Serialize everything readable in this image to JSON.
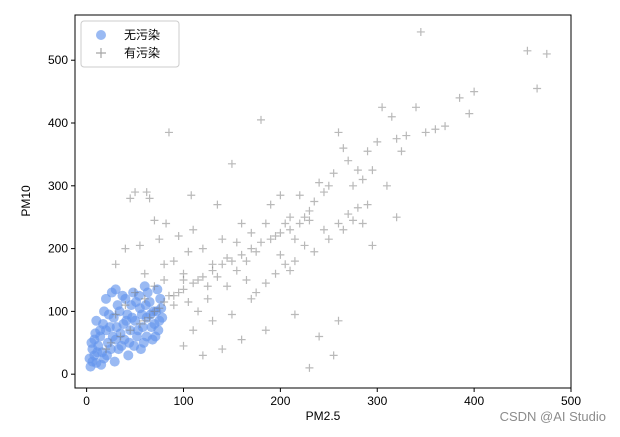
{
  "chart_data": {
    "type": "scatter",
    "title": "",
    "xlabel": "PM2.5",
    "ylabel": "PM10",
    "xlim": [
      -12,
      500
    ],
    "ylim": [
      -22,
      572
    ],
    "xticks": [
      0,
      100,
      200,
      300,
      400,
      500
    ],
    "yticks": [
      0,
      100,
      200,
      300,
      400,
      500
    ],
    "grid": false,
    "legend_position": "top-left",
    "series": [
      {
        "name": "无污染",
        "marker": "circle",
        "color": "#6495ED",
        "opacity": 0.65,
        "points": [
          [
            4,
            12
          ],
          [
            6,
            20
          ],
          [
            8,
            30
          ],
          [
            10,
            18
          ],
          [
            12,
            45
          ],
          [
            14,
            60
          ],
          [
            16,
            35
          ],
          [
            18,
            25
          ],
          [
            20,
            70
          ],
          [
            22,
            50
          ],
          [
            25,
            40
          ],
          [
            28,
            90
          ],
          [
            30,
            55
          ],
          [
            32,
            110
          ],
          [
            35,
            65
          ],
          [
            38,
            80
          ],
          [
            40,
            120
          ],
          [
            42,
            95
          ],
          [
            45,
            70
          ],
          [
            48,
            130
          ],
          [
            50,
            85
          ],
          [
            52,
            60
          ],
          [
            55,
            105
          ],
          [
            58,
            75
          ],
          [
            60,
            140
          ],
          [
            62,
            90
          ],
          [
            65,
            115
          ],
          [
            68,
            55
          ],
          [
            70,
            80
          ],
          [
            72,
            100
          ],
          [
            10,
            85
          ],
          [
            14,
            70
          ],
          [
            8,
            55
          ],
          [
            6,
            40
          ],
          [
            18,
            100
          ],
          [
            20,
            120
          ],
          [
            24,
            75
          ],
          [
            26,
            130
          ],
          [
            30,
            135
          ],
          [
            34,
            100
          ],
          [
            36,
            45
          ],
          [
            44,
            50
          ],
          [
            46,
            110
          ],
          [
            54,
            125
          ],
          [
            56,
            40
          ],
          [
            62,
            60
          ],
          [
            66,
            95
          ],
          [
            74,
            70
          ],
          [
            76,
            120
          ],
          [
            78,
            90
          ],
          [
            3,
            25
          ],
          [
            5,
            50
          ],
          [
            9,
            65
          ],
          [
            11,
            35
          ],
          [
            15,
            15
          ],
          [
            17,
            80
          ],
          [
            21,
            30
          ],
          [
            23,
            95
          ],
          [
            27,
            60
          ],
          [
            29,
            20
          ],
          [
            31,
            75
          ],
          [
            33,
            40
          ],
          [
            37,
            125
          ],
          [
            39,
            55
          ],
          [
            41,
            85
          ],
          [
            43,
            30
          ],
          [
            47,
            90
          ],
          [
            49,
            45
          ],
          [
            51,
            115
          ],
          [
            53,
            70
          ],
          [
            57,
            95
          ],
          [
            59,
            50
          ],
          [
            61,
            110
          ],
          [
            63,
            130
          ],
          [
            67,
            75
          ],
          [
            69,
            100
          ],
          [
            71,
            60
          ],
          [
            73,
            135
          ],
          [
            75,
            85
          ],
          [
            77,
            105
          ]
        ]
      },
      {
        "name": "有污染",
        "marker": "plus",
        "color": "#808080",
        "opacity": 0.55,
        "points": [
          [
            30,
            175
          ],
          [
            40,
            200
          ],
          [
            45,
            280
          ],
          [
            50,
            290
          ],
          [
            55,
            205
          ],
          [
            60,
            160
          ],
          [
            62,
            290
          ],
          [
            65,
            280
          ],
          [
            70,
            245
          ],
          [
            75,
            215
          ],
          [
            80,
            175
          ],
          [
            82,
            240
          ],
          [
            85,
            385
          ],
          [
            90,
            180
          ],
          [
            95,
            220
          ],
          [
            100,
            160
          ],
          [
            105,
            195
          ],
          [
            108,
            285
          ],
          [
            110,
            230
          ],
          [
            115,
            150
          ],
          [
            120,
            200
          ],
          [
            125,
            140
          ],
          [
            130,
            175
          ],
          [
            135,
            270
          ],
          [
            140,
            215
          ],
          [
            145,
            185
          ],
          [
            150,
            335
          ],
          [
            155,
            210
          ],
          [
            160,
            240
          ],
          [
            165,
            180
          ],
          [
            170,
            225
          ],
          [
            175,
            195
          ],
          [
            180,
            405
          ],
          [
            185,
            240
          ],
          [
            190,
            270
          ],
          [
            195,
            220
          ],
          [
            200,
            285
          ],
          [
            205,
            240
          ],
          [
            210,
            250
          ],
          [
            215,
            215
          ],
          [
            220,
            285
          ],
          [
            225,
            250
          ],
          [
            230,
            260
          ],
          [
            235,
            275
          ],
          [
            240,
            305
          ],
          [
            245,
            290
          ],
          [
            250,
            300
          ],
          [
            255,
            320
          ],
          [
            260,
            385
          ],
          [
            265,
            360
          ],
          [
            270,
            340
          ],
          [
            275,
            300
          ],
          [
            280,
            325
          ],
          [
            285,
            310
          ],
          [
            290,
            355
          ],
          [
            295,
            325
          ],
          [
            300,
            370
          ],
          [
            305,
            425
          ],
          [
            310,
            300
          ],
          [
            315,
            410
          ],
          [
            320,
            375
          ],
          [
            325,
            355
          ],
          [
            330,
            380
          ],
          [
            340,
            425
          ],
          [
            345,
            545
          ],
          [
            350,
            385
          ],
          [
            360,
            390
          ],
          [
            370,
            395
          ],
          [
            385,
            440
          ],
          [
            395,
            415
          ],
          [
            400,
            450
          ],
          [
            455,
            515
          ],
          [
            465,
            455
          ],
          [
            475,
            510
          ],
          [
            160,
            55
          ],
          [
            185,
            70
          ],
          [
            215,
            95
          ],
          [
            240,
            60
          ],
          [
            255,
            30
          ],
          [
            260,
            85
          ],
          [
            230,
            10
          ],
          [
            295,
            205
          ],
          [
            320,
            250
          ],
          [
            100,
            45
          ],
          [
            120,
            30
          ],
          [
            140,
            40
          ],
          [
            110,
            70
          ],
          [
            130,
            85
          ],
          [
            150,
            95
          ],
          [
            170,
            120
          ],
          [
            90,
            110
          ],
          [
            95,
            130
          ],
          [
            100,
            150
          ],
          [
            105,
            115
          ],
          [
            115,
            100
          ],
          [
            125,
            120
          ],
          [
            135,
            155
          ],
          [
            145,
            140
          ],
          [
            155,
            165
          ],
          [
            165,
            150
          ],
          [
            175,
            130
          ],
          [
            185,
            145
          ],
          [
            195,
            160
          ],
          [
            200,
            190
          ],
          [
            205,
            175
          ],
          [
            210,
            165
          ],
          [
            215,
            180
          ],
          [
            225,
            205
          ],
          [
            235,
            195
          ],
          [
            245,
            230
          ],
          [
            250,
            215
          ],
          [
            260,
            240
          ],
          [
            265,
            230
          ],
          [
            270,
            255
          ],
          [
            275,
            245
          ],
          [
            280,
            265
          ],
          [
            285,
            240
          ],
          [
            290,
            270
          ],
          [
            30,
            95
          ],
          [
            40,
            110
          ],
          [
            50,
            130
          ],
          [
            60,
            120
          ],
          [
            70,
            140
          ],
          [
            80,
            150
          ],
          [
            85,
            125
          ],
          [
            75,
            105
          ],
          [
            65,
            90
          ],
          [
            55,
            80
          ],
          [
            45,
            70
          ],
          [
            35,
            60
          ],
          [
            25,
            50
          ],
          [
            20,
            40
          ],
          [
            60,
            85
          ],
          [
            70,
            100
          ],
          [
            80,
            115
          ],
          [
            90,
            125
          ],
          [
            100,
            135
          ],
          [
            110,
            145
          ],
          [
            120,
            155
          ],
          [
            130,
            165
          ],
          [
            140,
            175
          ],
          [
            150,
            180
          ],
          [
            160,
            190
          ],
          [
            170,
            200
          ],
          [
            180,
            210
          ],
          [
            190,
            215
          ],
          [
            200,
            225
          ],
          [
            210,
            230
          ],
          [
            220,
            240
          ],
          [
            230,
            245
          ]
        ]
      }
    ]
  },
  "watermark": "CSDN @AI Studio"
}
